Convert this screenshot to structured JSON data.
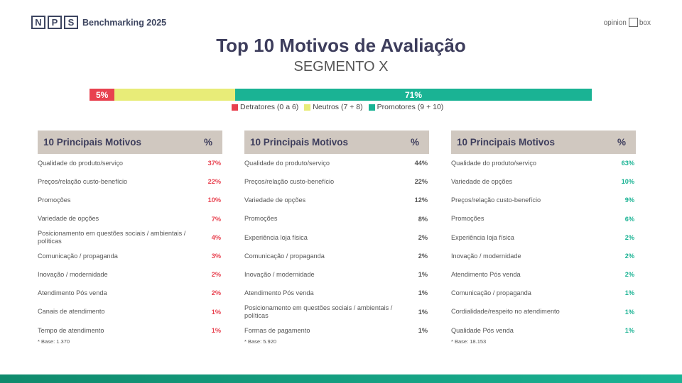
{
  "header": {
    "logo_letters": [
      "N",
      "P",
      "S"
    ],
    "logo_text": "Benchmarking 2025",
    "brand_left": "opinion",
    "brand_right": "box"
  },
  "title": "Top 10 Motivos de Avaliação",
  "subtitle": "SEGMENTO X",
  "nps_bar": {
    "detratores": {
      "label": "5%",
      "value": 5,
      "color": "#e8414f"
    },
    "neutros": {
      "label": "",
      "value": 24,
      "color": "#e8ec78"
    },
    "promotores": {
      "label": "71%",
      "value": 71,
      "color": "#1ab394"
    }
  },
  "legend": [
    {
      "label": "Detratores (0 a 6)",
      "color": "#e8414f"
    },
    {
      "label": "Neutros (7 + 8)",
      "color": "#e8ec78"
    },
    {
      "label": "Promotores (9 + 10)",
      "color": "#1ab394"
    }
  ],
  "tables": [
    {
      "header": "10 Principais Motivos",
      "pct_header": "%",
      "pct_color": "#e8414f",
      "base": "* Base: 1.370",
      "rows": [
        {
          "label": "Qualidade do produto/serviço",
          "pct": "37%"
        },
        {
          "label": "Preços/relação custo-benefício",
          "pct": "22%"
        },
        {
          "label": "Promoções",
          "pct": "10%"
        },
        {
          "label": "Variedade de opções",
          "pct": "7%"
        },
        {
          "label": "Posicionamento em questões sociais / ambientais / políticas",
          "pct": "4%"
        },
        {
          "label": "Comunicação / propaganda",
          "pct": "3%"
        },
        {
          "label": "Inovação / modernidade",
          "pct": "2%"
        },
        {
          "label": "Atendimento Pós venda",
          "pct": "2%"
        },
        {
          "label": "Canais de atendimento",
          "pct": "1%"
        },
        {
          "label": "Tempo de atendimento",
          "pct": "1%"
        }
      ]
    },
    {
      "header": "10 Principais Motivos",
      "pct_header": "%",
      "pct_color": "#555555",
      "base": "* Base: 5.920",
      "rows": [
        {
          "label": "Qualidade do produto/serviço",
          "pct": "44%"
        },
        {
          "label": "Preços/relação custo-benefício",
          "pct": "22%"
        },
        {
          "label": "Variedade de opções",
          "pct": "12%"
        },
        {
          "label": "Promoções",
          "pct": "8%"
        },
        {
          "label": "Experiência loja física",
          "pct": "2%"
        },
        {
          "label": "Comunicação / propaganda",
          "pct": "2%"
        },
        {
          "label": "Inovação / modernidade",
          "pct": "1%"
        },
        {
          "label": "Atendimento Pós venda",
          "pct": "1%"
        },
        {
          "label": "Posicionamento em questões sociais / ambientais / políticas",
          "pct": "1%"
        },
        {
          "label": "Formas de pagamento",
          "pct": "1%"
        }
      ]
    },
    {
      "header": "10 Principais Motivos",
      "pct_header": "%",
      "pct_color": "#1ab394",
      "base": "* Base: 18.153",
      "rows": [
        {
          "label": "Qualidade do produto/serviço",
          "pct": "63%"
        },
        {
          "label": "Variedade de opções",
          "pct": "10%"
        },
        {
          "label": "Preços/relação custo-benefício",
          "pct": "9%"
        },
        {
          "label": "Promoções",
          "pct": "6%"
        },
        {
          "label": "Experiência loja física",
          "pct": "2%"
        },
        {
          "label": "Inovação / modernidade",
          "pct": "2%"
        },
        {
          "label": "Atendimento Pós venda",
          "pct": "2%"
        },
        {
          "label": "Comunicação / propaganda",
          "pct": "1%"
        },
        {
          "label": "Cordialidade/respeito no atendimento",
          "pct": "1%"
        },
        {
          "label": "Qualidade Pós venda",
          "pct": "1%"
        }
      ]
    }
  ]
}
